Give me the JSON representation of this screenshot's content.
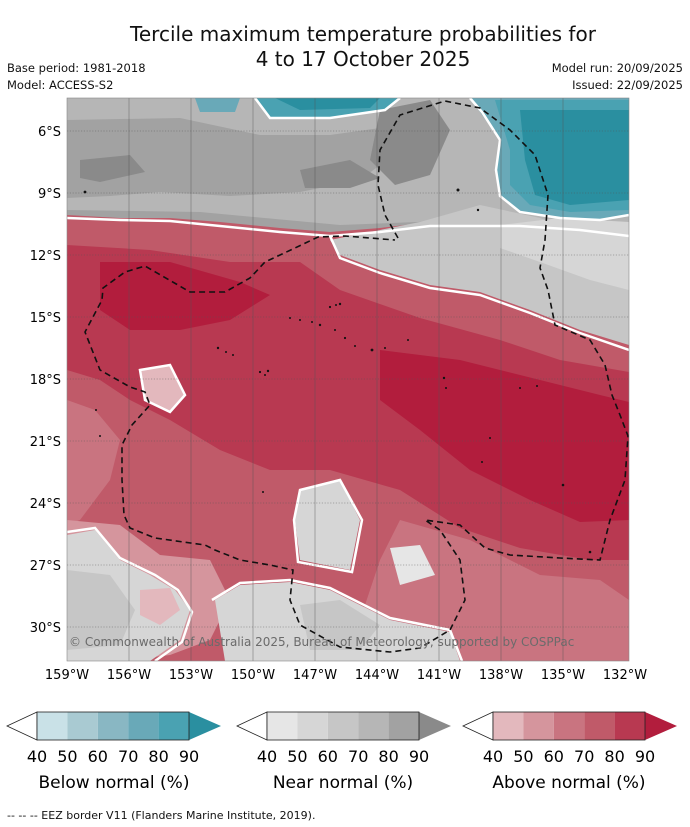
{
  "title_line1": "Tercile maximum temperature probabilities for",
  "title_line2": "4 to 17 October 2025",
  "base_period": "Base period: 1981-2018",
  "model": "Model: ACCESS-S2",
  "model_run": "Model run: 20/09/2025",
  "issued": "Issued: 22/09/2025",
  "lat_ticks": [
    "6°S",
    "9°S",
    "12°S",
    "15°S",
    "18°S",
    "21°S",
    "24°S",
    "27°S",
    "30°S"
  ],
  "lon_ticks": [
    "159°W",
    "156°W",
    "153°W",
    "150°W",
    "147°W",
    "144°W",
    "141°W",
    "138°W",
    "135°W",
    "132°W"
  ],
  "copyright": "© Commonwealth of Australia 2025, Bureau of Meteorology, supported by COSPPac",
  "legend": {
    "ticks": [
      "40",
      "50",
      "60",
      "70",
      "80",
      "90"
    ],
    "below": {
      "label": "Below normal (%)",
      "colors": [
        "#c9e1e7",
        "#a9cad2",
        "#89b7c3",
        "#69a9b8",
        "#4aa2b2",
        "#2a8fa0"
      ]
    },
    "near": {
      "label": "Near normal (%)",
      "colors": [
        "#e6e6e6",
        "#d6d6d6",
        "#c6c6c6",
        "#b6b6b6",
        "#a2a2a2",
        "#8a8a8a"
      ]
    },
    "above": {
      "label": "Above normal (%)",
      "colors": [
        "#e3b8bd",
        "#d5959d",
        "#c97480",
        "#c05a69",
        "#b83951",
        "#b21d3d"
      ]
    }
  },
  "footnote": "--  --  -- EEZ border V11 (Flanders Marine Institute, 2019)."
}
